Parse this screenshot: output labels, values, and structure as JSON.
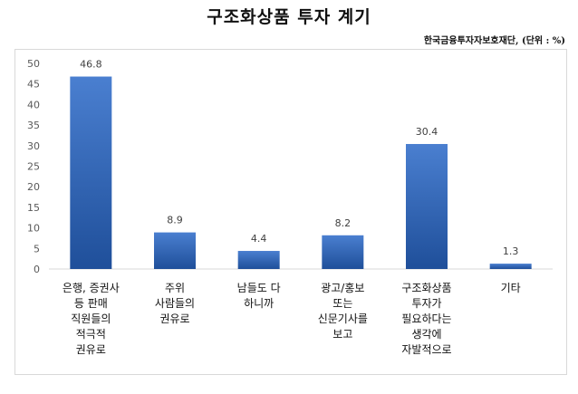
{
  "title": "구조화상품 투자 계기",
  "source": "한국금융투자자보호재단, (단위 : %)",
  "colors": {
    "bar_top": "#4a7fd0",
    "bar_bottom": "#1f4f9a",
    "axis": "#d9d9d9"
  },
  "chart_data": {
    "type": "bar",
    "title": "구조화상품 투자 계기",
    "categories": [
      [
        "은행, 증권사",
        "등 판매",
        "직원들의",
        "적극적",
        "권유로"
      ],
      [
        "주위",
        "사람들의",
        "권유로"
      ],
      [
        "남들도 다",
        "하니까"
      ],
      [
        "광고/홍보",
        "또는",
        "신문기사를",
        "보고"
      ],
      [
        "구조화상품",
        "투자가",
        "필요하다는",
        "생각에",
        "자발적으로"
      ],
      [
        "기타"
      ]
    ],
    "values": [
      46.8,
      8.9,
      4.4,
      8.2,
      30.4,
      1.3
    ],
    "data_labels": [
      "46.8",
      "8.9",
      "4.4",
      "8.2",
      "30.4",
      "1.3"
    ],
    "ylim": [
      0,
      50
    ],
    "yticks": [
      "0",
      "5",
      "10",
      "15",
      "20",
      "25",
      "30",
      "35",
      "40",
      "45",
      "50"
    ],
    "grid": false,
    "legend": "none"
  }
}
